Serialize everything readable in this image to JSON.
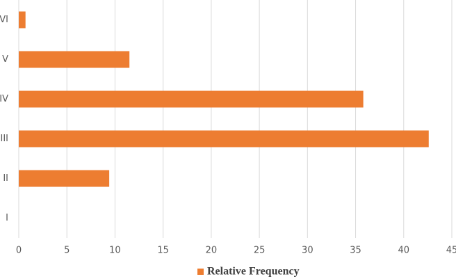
{
  "chart_data": {
    "type": "bar",
    "orientation": "horizontal",
    "categories": [
      "I",
      "II",
      "III",
      "IV",
      "V",
      "VI"
    ],
    "series": [
      {
        "name": "Relative Frequency",
        "color": "#ED7D31",
        "values": [
          0,
          9.4,
          42.6,
          35.8,
          11.5,
          0.7
        ]
      }
    ],
    "xlim": [
      0,
      45
    ],
    "xticks": [
      0,
      5,
      10,
      15,
      20,
      25,
      30,
      35,
      40,
      45
    ],
    "grid": true,
    "legend": "bottom"
  }
}
